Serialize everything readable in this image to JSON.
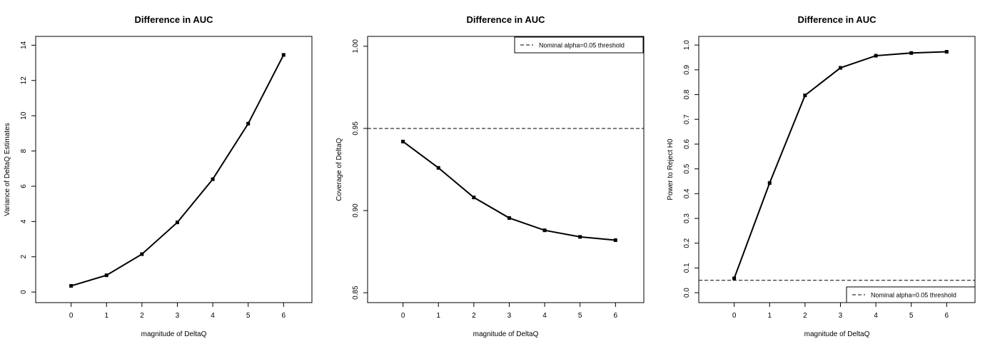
{
  "chart_data": [
    {
      "type": "line",
      "title": "Difference in AUC",
      "xlabel": "magnitude of DeltaQ",
      "ylabel": "Variance of DeltaQ Estimates",
      "x": [
        0,
        1,
        2,
        3,
        4,
        5,
        6
      ],
      "series": [
        {
          "values": [
            0.35,
            0.95,
            2.15,
            3.95,
            6.4,
            9.55,
            13.45
          ]
        }
      ],
      "xlim": [
        -1,
        6.8
      ],
      "ylim": [
        -0.6,
        14.5
      ],
      "xticks": [
        0,
        1,
        2,
        3,
        4,
        5,
        6
      ],
      "yticks": [
        0,
        2,
        4,
        6,
        8,
        10,
        12,
        14
      ],
      "ytick_labels": [
        "0",
        "2",
        "4",
        "6",
        "8",
        "10",
        "12",
        "14"
      ],
      "grid": false
    },
    {
      "type": "line",
      "title": "Difference in AUC",
      "xlabel": "magnitude of DeltaQ",
      "ylabel": "Coverage of DeltaQ",
      "x": [
        0,
        1,
        2,
        3,
        4,
        5,
        6
      ],
      "series": [
        {
          "values": [
            0.942,
            0.926,
            0.908,
            0.8955,
            0.888,
            0.884,
            0.882
          ]
        }
      ],
      "reference_line": {
        "y": 0.95,
        "style": "dashed"
      },
      "legend": {
        "label": "Nominal alpha=0.05 threshold",
        "position": "top-right"
      },
      "xlim": [
        -1,
        6.8
      ],
      "ylim": [
        0.844,
        1.006
      ],
      "xticks": [
        0,
        1,
        2,
        3,
        4,
        5,
        6
      ],
      "yticks": [
        0.85,
        0.9,
        0.95,
        1.0
      ],
      "ytick_labels": [
        "0.85",
        "0.90",
        "0.95",
        "1.00"
      ],
      "grid": false
    },
    {
      "type": "line",
      "title": "Difference in AUC",
      "xlabel": "magnitude of DeltaQ",
      "ylabel": "Power to Reject H0",
      "x": [
        0,
        1,
        2,
        3,
        4,
        5,
        6
      ],
      "series": [
        {
          "values": [
            0.058,
            0.443,
            0.797,
            0.908,
            0.957,
            0.968,
            0.973
          ]
        }
      ],
      "reference_line": {
        "y": 0.05,
        "style": "dashed"
      },
      "legend": {
        "label": "Nominal alpha=0.05 threshold",
        "position": "bottom-right"
      },
      "xlim": [
        -1,
        6.8
      ],
      "ylim": [
        -0.04,
        1.035
      ],
      "xticks": [
        0,
        1,
        2,
        3,
        4,
        5,
        6
      ],
      "yticks": [
        0.0,
        0.1,
        0.2,
        0.3,
        0.4,
        0.5,
        0.6,
        0.7,
        0.8,
        0.9,
        1.0
      ],
      "ytick_labels": [
        "0.0",
        "0.1",
        "0.2",
        "0.3",
        "0.4",
        "0.5",
        "0.6",
        "0.7",
        "0.8",
        "0.9",
        "1.0"
      ],
      "grid": false
    }
  ]
}
